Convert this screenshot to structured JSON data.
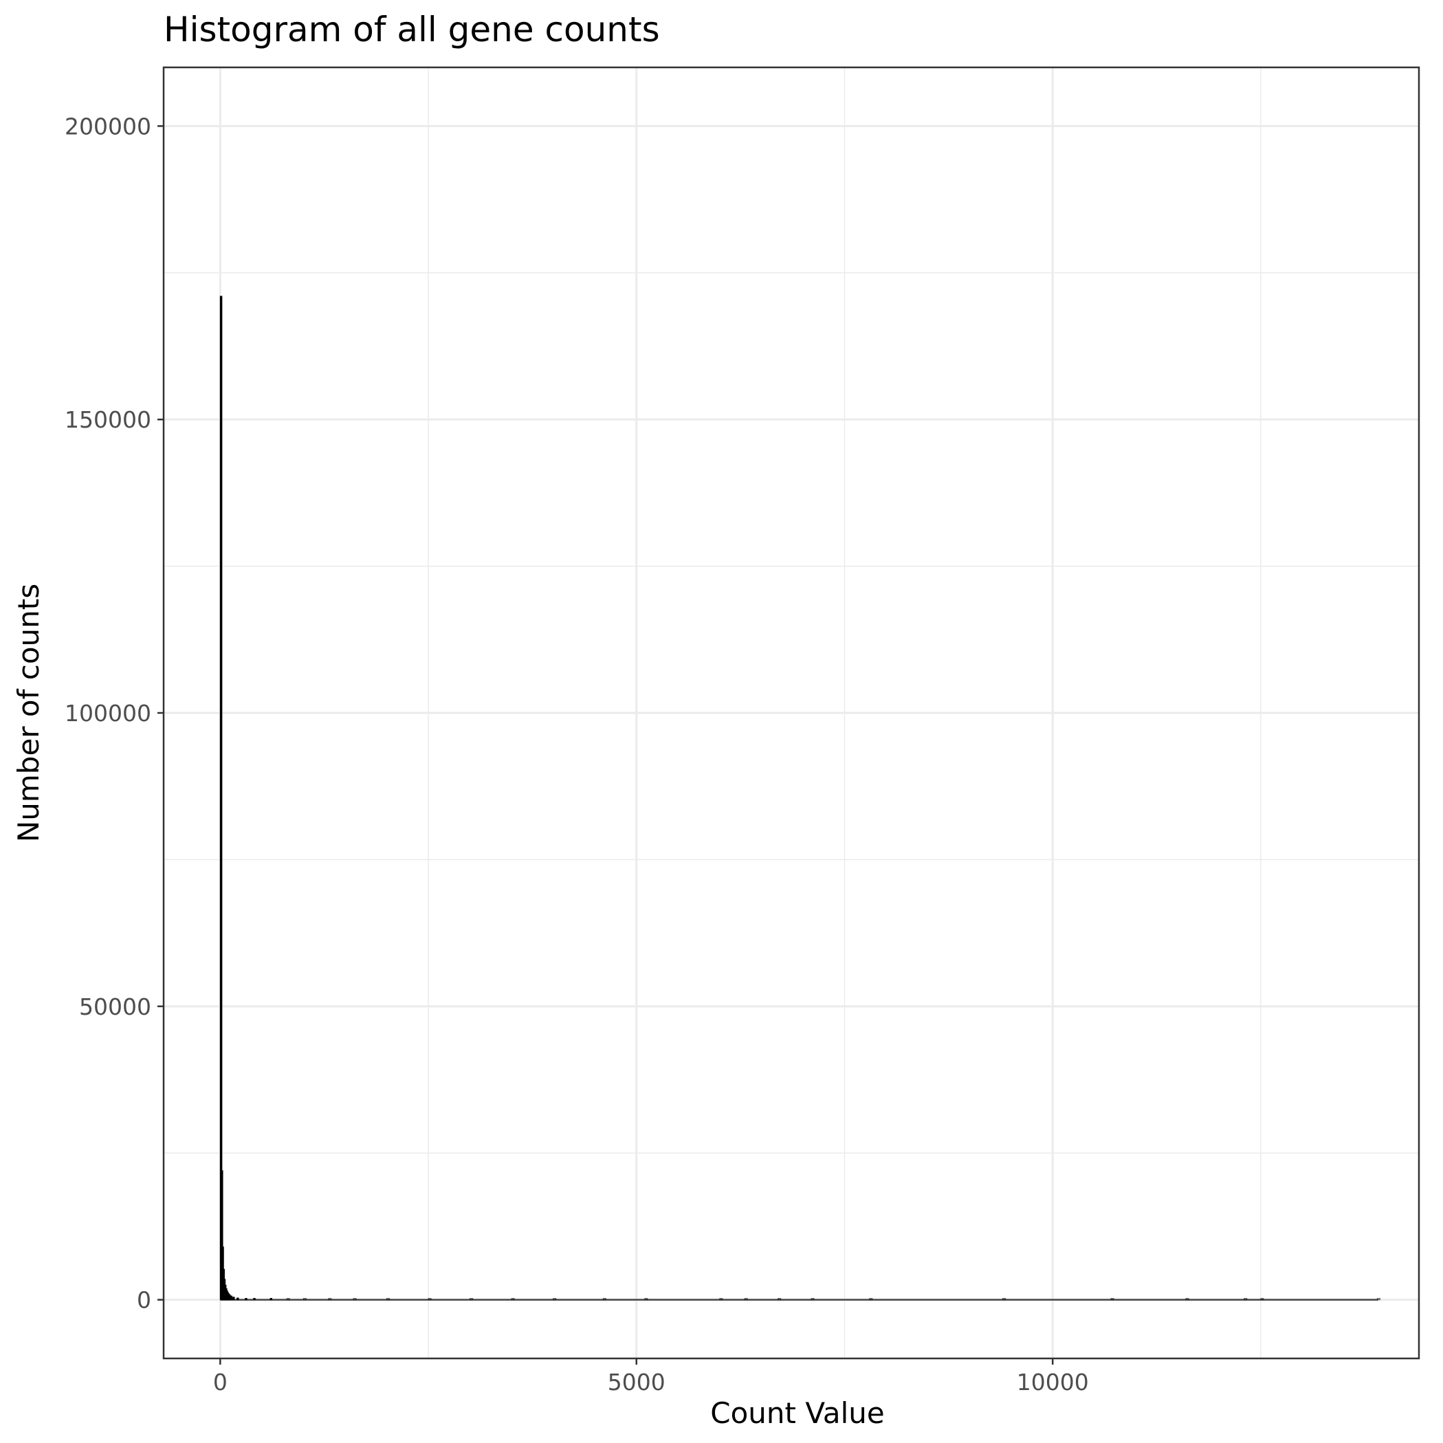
{
  "chart_data": {
    "type": "bar",
    "title": "Histogram of all gene counts",
    "xlabel": "Count Value",
    "ylabel": "Number of counts",
    "xlim": [
      -680,
      14400
    ],
    "ylim": [
      -10000,
      210000
    ],
    "x_ticks": [
      0,
      5000,
      10000
    ],
    "x_tick_labels": [
      "0",
      "5000",
      "10000"
    ],
    "x_minor_ticks": [
      2500,
      7500,
      12500
    ],
    "y_ticks": [
      0,
      50000,
      100000,
      150000,
      200000
    ],
    "y_tick_labels": [
      "0",
      "50000",
      "100000",
      "150000",
      "200000"
    ],
    "y_minor_ticks": [
      25000,
      75000,
      125000,
      175000
    ],
    "grid": true,
    "bin_width": 10,
    "bars": [
      {
        "x": 0,
        "count": 171000
      },
      {
        "x": 10,
        "count": 22000
      },
      {
        "x": 20,
        "count": 9000
      },
      {
        "x": 30,
        "count": 5200
      },
      {
        "x": 40,
        "count": 3500
      },
      {
        "x": 50,
        "count": 2500
      },
      {
        "x": 60,
        "count": 1900
      },
      {
        "x": 70,
        "count": 1500
      },
      {
        "x": 80,
        "count": 1200
      },
      {
        "x": 90,
        "count": 1000
      },
      {
        "x": 100,
        "count": 850
      },
      {
        "x": 120,
        "count": 650
      },
      {
        "x": 150,
        "count": 450
      },
      {
        "x": 200,
        "count": 300
      },
      {
        "x": 300,
        "count": 180
      },
      {
        "x": 400,
        "count": 120
      },
      {
        "x": 600,
        "count": 70
      },
      {
        "x": 800,
        "count": 45
      },
      {
        "x": 1000,
        "count": 30
      },
      {
        "x": 1300,
        "count": 20
      },
      {
        "x": 1600,
        "count": 14
      },
      {
        "x": 2000,
        "count": 10
      },
      {
        "x": 2500,
        "count": 6
      },
      {
        "x": 3000,
        "count": 4
      },
      {
        "x": 3500,
        "count": 3
      },
      {
        "x": 4000,
        "count": 2
      },
      {
        "x": 4600,
        "count": 2
      },
      {
        "x": 5100,
        "count": 1
      },
      {
        "x": 6000,
        "count": 1
      },
      {
        "x": 6300,
        "count": 1
      },
      {
        "x": 6700,
        "count": 1
      },
      {
        "x": 7100,
        "count": 1
      },
      {
        "x": 7800,
        "count": 1
      },
      {
        "x": 9400,
        "count": 1
      },
      {
        "x": 10700,
        "count": 1
      },
      {
        "x": 11600,
        "count": 1
      },
      {
        "x": 12300,
        "count": 1
      },
      {
        "x": 12500,
        "count": 1
      },
      {
        "x": 13900,
        "count": 1
      }
    ]
  }
}
